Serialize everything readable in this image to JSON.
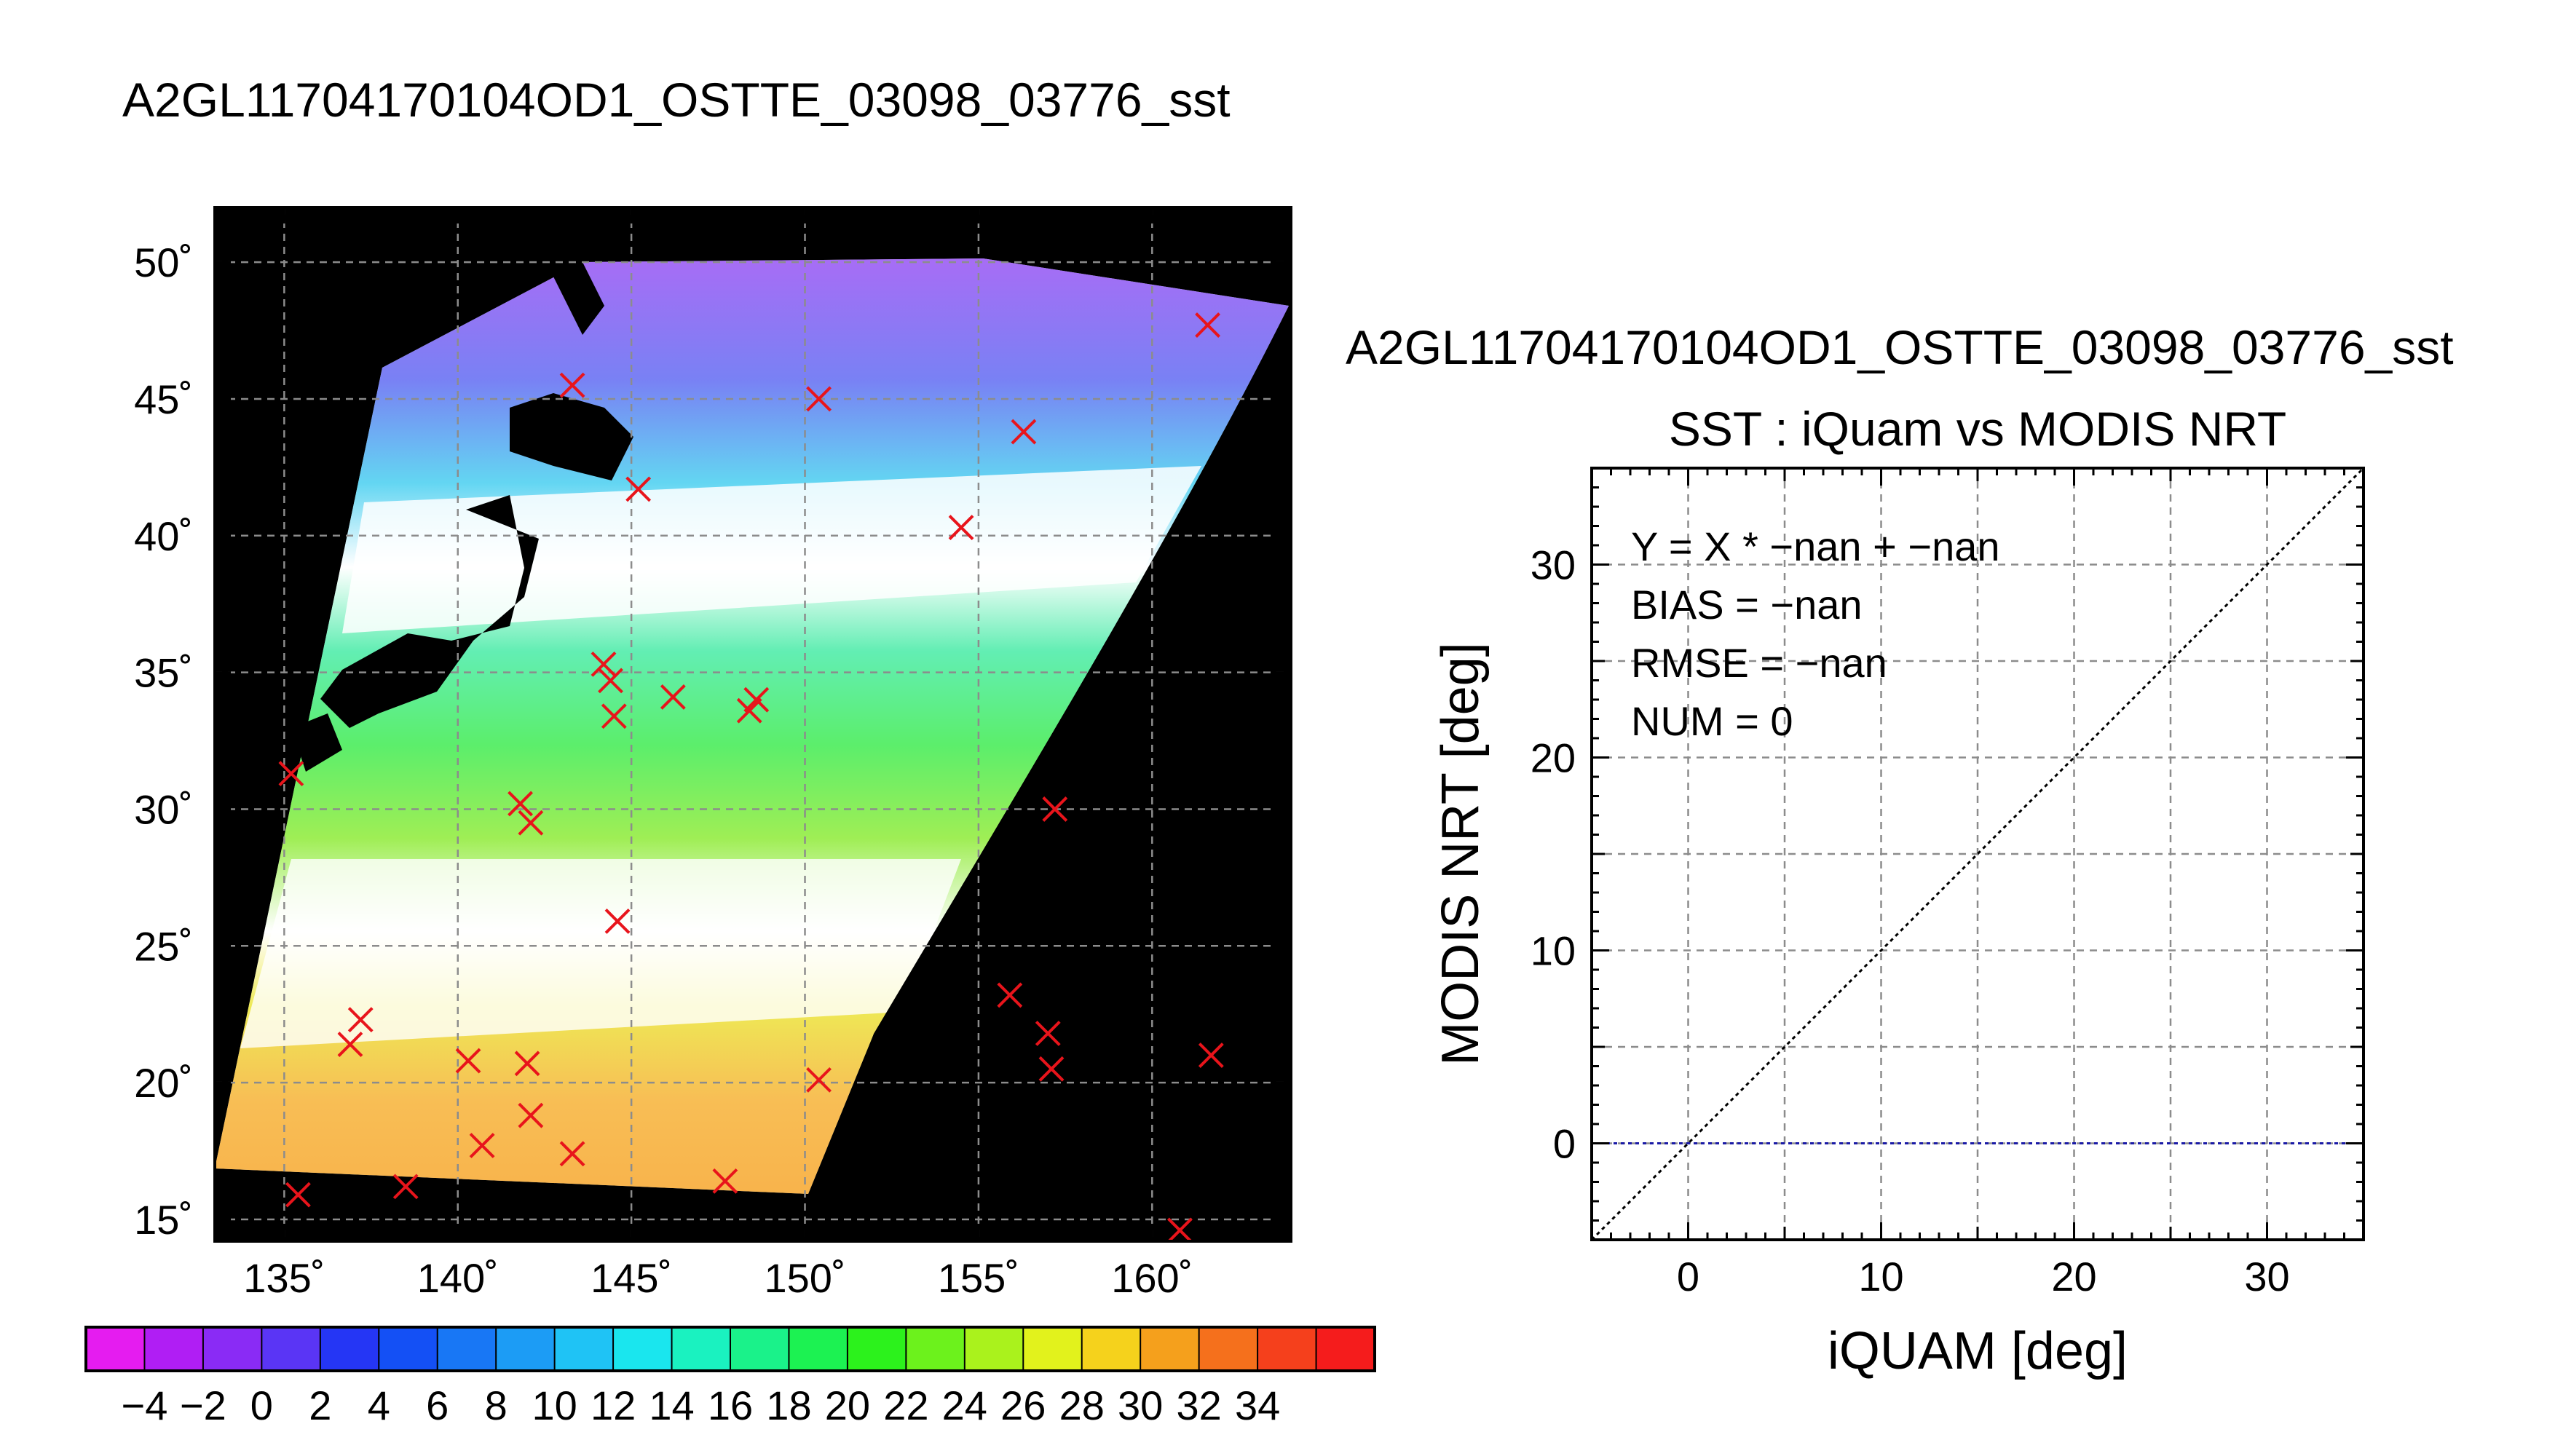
{
  "figure": {
    "main_title": "A2GL11704170104OD1_OSTTE_03098_03776_sst"
  },
  "chart_data": [
    {
      "type": "scatter",
      "chart": "sst-map",
      "xticks": [
        135,
        140,
        145,
        150,
        155,
        160
      ],
      "yticks": [
        15,
        20,
        25,
        30,
        35,
        40,
        45,
        50
      ],
      "xtick_labels": [
        "135˚",
        "140˚",
        "145˚",
        "150˚",
        "155˚",
        "160˚"
      ],
      "ytick_labels": [
        "15˚",
        "20˚",
        "25˚",
        "30˚",
        "35˚",
        "40˚",
        "45˚",
        "50˚"
      ],
      "xlim": [
        133,
        164
      ],
      "ylim": [
        14.2,
        52
      ],
      "grid": true,
      "marker_color": "#e8141b",
      "points": [
        [
          161.6,
          47.7
        ],
        [
          143.3,
          45.5
        ],
        [
          150.4,
          45.0
        ],
        [
          156.3,
          43.8
        ],
        [
          145.2,
          41.7
        ],
        [
          154.5,
          40.3
        ],
        [
          144.2,
          35.3
        ],
        [
          144.4,
          34.7
        ],
        [
          146.2,
          34.1
        ],
        [
          148.6,
          34.0
        ],
        [
          148.4,
          33.6
        ],
        [
          144.5,
          33.4
        ],
        [
          135.2,
          31.3
        ],
        [
          141.8,
          30.2
        ],
        [
          142.1,
          29.5
        ],
        [
          157.2,
          30.0
        ],
        [
          144.6,
          25.9
        ],
        [
          155.9,
          23.2
        ],
        [
          137.2,
          22.3
        ],
        [
          136.9,
          21.4
        ],
        [
          157.0,
          21.8
        ],
        [
          161.7,
          21.0
        ],
        [
          140.3,
          20.8
        ],
        [
          142.0,
          20.7
        ],
        [
          157.1,
          20.5
        ],
        [
          150.4,
          20.1
        ],
        [
          142.1,
          18.8
        ],
        [
          140.7,
          17.7
        ],
        [
          143.3,
          17.4
        ],
        [
          147.7,
          16.4
        ],
        [
          138.5,
          16.2
        ],
        [
          135.4,
          15.9
        ],
        [
          160.8,
          14.6
        ]
      ]
    },
    {
      "type": "line",
      "chart": "iquam-vs-modis",
      "title": "A2GL11704170104OD1_OSTTE_03098_03776_sst",
      "subtitle": "SST : iQuam vs MODIS NRT",
      "xlabel": "iQUAM [deg]",
      "ylabel": "MODIS NRT [deg]",
      "xlim": [
        -5,
        35
      ],
      "ylim": [
        -5,
        35
      ],
      "xticks": [
        0,
        10,
        20,
        30
      ],
      "yticks": [
        0,
        10,
        20,
        30
      ],
      "grid": true,
      "series": [
        {
          "values": [
            [
              -5,
              -5
            ],
            [
              35,
              35
            ]
          ],
          "color": "#000000",
          "style": "dotted"
        },
        {
          "values": [
            [
              -5,
              0
            ],
            [
              35,
              0
            ]
          ],
          "color": "#1a1aa6",
          "style": "dotted"
        }
      ],
      "annotations": [
        "Y = X * −nan + −nan",
        "BIAS = −nan",
        "RMSE = −nan",
        "NUM = 0"
      ]
    }
  ],
  "colorbar": {
    "labels": [
      "−4",
      "−2",
      "0",
      "2",
      "4",
      "6",
      "8",
      "10",
      "12",
      "14",
      "16",
      "18",
      "20",
      "22",
      "24",
      "26",
      "28",
      "30",
      "32",
      "34"
    ],
    "colors": [
      "#e51cf0",
      "#b01ef4",
      "#8a2bf5",
      "#5a35f5",
      "#2536f5",
      "#1450f5",
      "#1877f5",
      "#1c9cf5",
      "#1fc3f5",
      "#1ae6ee",
      "#1af2c0",
      "#1af28a",
      "#1cf252",
      "#2cf21c",
      "#6cf21c",
      "#aaf21c",
      "#e2f21c",
      "#f5d21c",
      "#f5a01c",
      "#f5701c",
      "#f5401c",
      "#f51c1c"
    ]
  }
}
